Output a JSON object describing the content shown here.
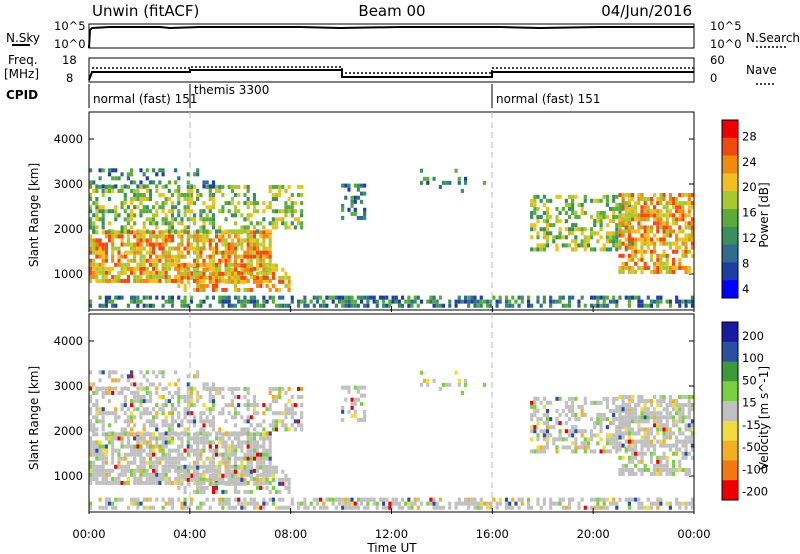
{
  "header": {
    "left": "Unwin (fitACF)",
    "center": "Beam 00",
    "right": "04/Jun/2016"
  },
  "top_panels": {
    "nsky": {
      "label": "N.Sky",
      "tick_top": "10^5",
      "tick_bottom": "10^0",
      "right_tick_top": "10^5",
      "right_tick_bottom": "10^0",
      "right_label": "N.Search"
    },
    "freq": {
      "label_line1": "Freq.",
      "label_line2": "[MHz]",
      "tick_top": "18",
      "tick_bottom": "8",
      "right_tick_top": "60",
      "right_tick_bottom": "0",
      "right_label": "Nave"
    },
    "cpid": {
      "label": "CPID",
      "segments": [
        {
          "text": "normal (fast) 151",
          "start_hour": 0
        },
        {
          "text": "themis 3300",
          "start_hour": 4
        },
        {
          "text": "normal (fast) 151",
          "start_hour": 16
        }
      ]
    }
  },
  "chart_data": [
    {
      "type": "heatmap",
      "name": "power",
      "ylabel": "Slant Range [km]",
      "colorbar_label": "Power [dB]",
      "colorbar_ticks": [
        "28",
        "24",
        "20",
        "16",
        "12",
        "8",
        "4"
      ],
      "colorbar_range": [
        0,
        30
      ],
      "ylim": [
        200,
        4600
      ],
      "yticks": [
        "4000",
        "3000",
        "2000",
        "1000"
      ],
      "x_range_hours": [
        0,
        24
      ],
      "colors": [
        "#0000ff",
        "#1f3fa0",
        "#2e6b8f",
        "#3a8f5e",
        "#5aab3a",
        "#a8c832",
        "#f0c020",
        "#f08a10",
        "#f04a10",
        "#ee0000"
      ]
    },
    {
      "type": "heatmap",
      "name": "velocity",
      "ylabel": "Slant Range [km]",
      "colorbar_label": "Velocity [m s^-1]",
      "colorbar_ticks": [
        "200",
        "100",
        "50",
        "15",
        "-15",
        "-50",
        "-100",
        "-200"
      ],
      "colorbar_range": [
        -250,
        250
      ],
      "ylim": [
        200,
        4600
      ],
      "yticks": [
        "4000",
        "3000",
        "2000",
        "1000"
      ],
      "x_range_hours": [
        0,
        24
      ],
      "xticks": [
        "00:00",
        "04:00",
        "08:00",
        "12:00",
        "16:00",
        "20:00",
        "00:00"
      ],
      "xlabel": "Time UT",
      "colors": [
        "#ee0000",
        "#f07a10",
        "#f0b020",
        "#f0dc40",
        "#c0c0c0",
        "#7ad040",
        "#3a9a3a",
        "#2a4fa0",
        "#1a1aa0"
      ]
    }
  ]
}
